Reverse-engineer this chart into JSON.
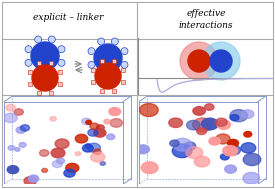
{
  "title_left": "explicit – linker",
  "title_right": "effective\ninteractions",
  "bg_color": "#ffffff",
  "border_color": "#aaaaaa",
  "divider_color": "#aaaaaa",
  "blue_color": "#2244cc",
  "red_color": "#cc2200",
  "pink_fill": "#ee8888",
  "cyan_fill": "#88ccee",
  "box_color": "#8899cc",
  "curve_color": "#aaaadd",
  "title_fontsize": 6.5,
  "sim_bg": "#f0f0ff"
}
